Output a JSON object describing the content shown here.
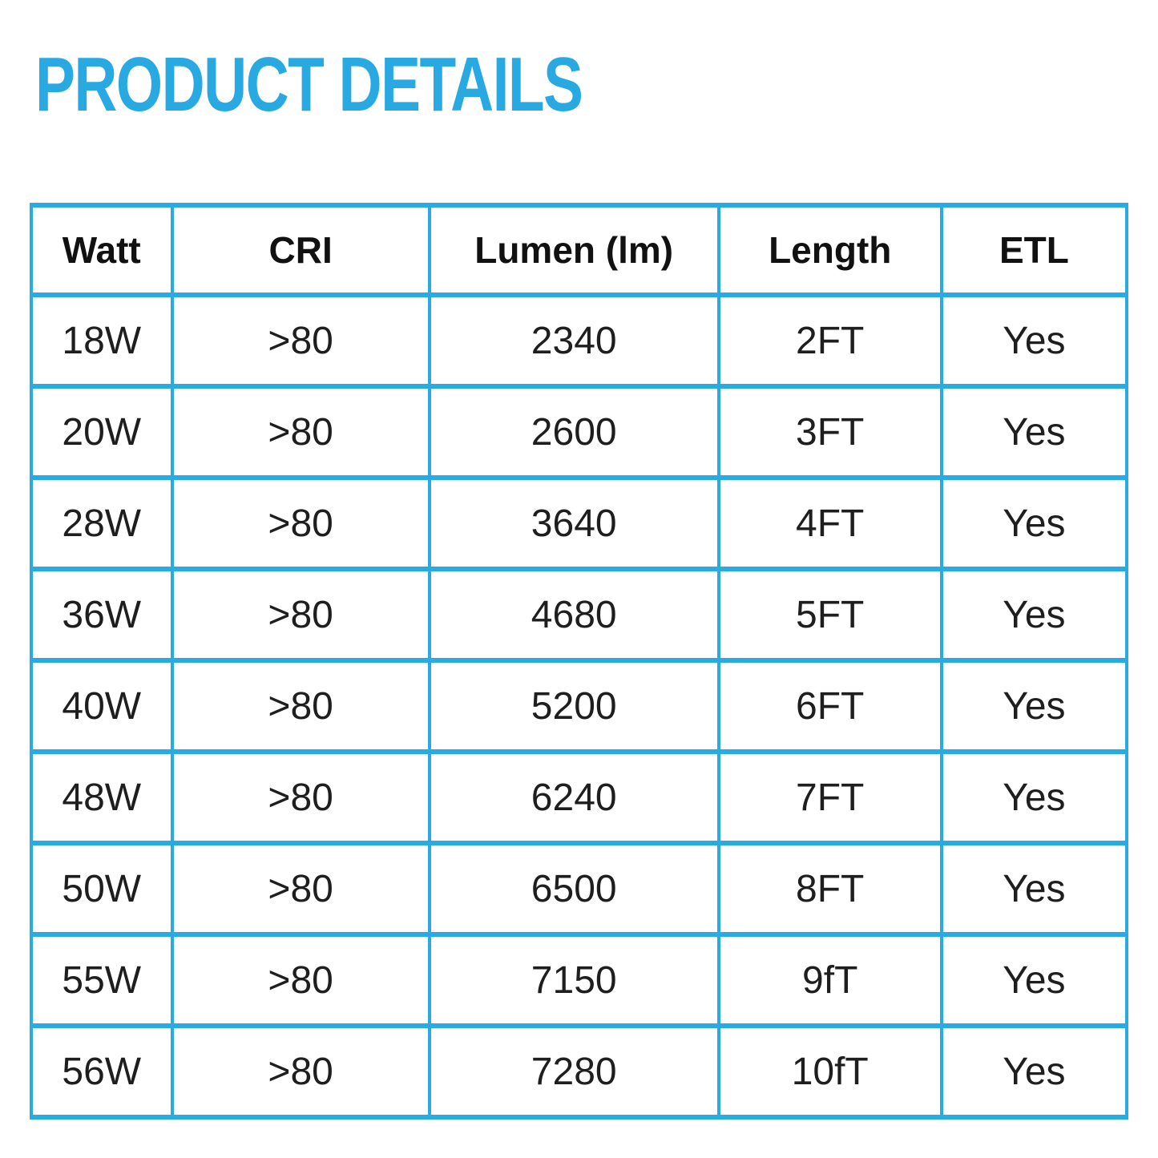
{
  "page_title": "PRODUCT DETAILS",
  "colors": {
    "accent": "#29ABE2",
    "title": "#29A9E1",
    "header_text": "#111111",
    "cell_text": "#1e1e1e",
    "background": "#ffffff"
  },
  "table": {
    "headers": [
      "Watt",
      "CRI",
      "Lumen (lm)",
      "Length",
      "ETL"
    ],
    "rows": [
      [
        "18W",
        ">80",
        "2340",
        "2FT",
        "Yes"
      ],
      [
        "20W",
        ">80",
        "2600",
        "3FT",
        "Yes"
      ],
      [
        "28W",
        ">80",
        "3640",
        "4FT",
        "Yes"
      ],
      [
        "36W",
        ">80",
        "4680",
        "5FT",
        "Yes"
      ],
      [
        "40W",
        ">80",
        "5200",
        "6FT",
        "Yes"
      ],
      [
        "48W",
        ">80",
        "6240",
        "7FT",
        "Yes"
      ],
      [
        "50W",
        ">80",
        "6500",
        "8FT",
        "Yes"
      ],
      [
        "55W",
        ">80",
        "7150",
        "9fT",
        "Yes"
      ],
      [
        "56W",
        ">80",
        "7280",
        "10fT",
        "Yes"
      ]
    ]
  }
}
